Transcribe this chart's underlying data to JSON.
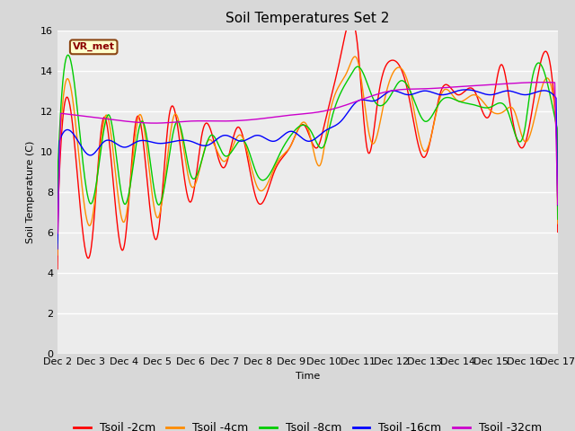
{
  "title": "Soil Temperatures Set 2",
  "xlabel": "Time",
  "ylabel": "Soil Temperature (C)",
  "ylim": [
    0,
    16
  ],
  "yticks": [
    0,
    2,
    4,
    6,
    8,
    10,
    12,
    14,
    16
  ],
  "x_labels": [
    "Dec 2",
    "Dec 3",
    "Dec 4",
    "Dec 5",
    "Dec 6",
    "Dec 7",
    "Dec 8",
    "Dec 9",
    "Dec 10",
    "Dec 11",
    "Dec 12",
    "Dec 13",
    "Dec 14",
    "Dec 15",
    "Dec 16",
    "Dec 17"
  ],
  "legend_label": "VR_met",
  "series_labels": [
    "Tsoil -2cm",
    "Tsoil -4cm",
    "Tsoil -8cm",
    "Tsoil -16cm",
    "Tsoil -32cm"
  ],
  "series_colors": [
    "#ff0000",
    "#ff8c00",
    "#00cc00",
    "#0000ff",
    "#cc00cc"
  ],
  "fig_bg_color": "#d8d8d8",
  "plot_bg_color": "#ececec",
  "title_fontsize": 11,
  "axis_fontsize": 8,
  "legend_fontsize": 9
}
